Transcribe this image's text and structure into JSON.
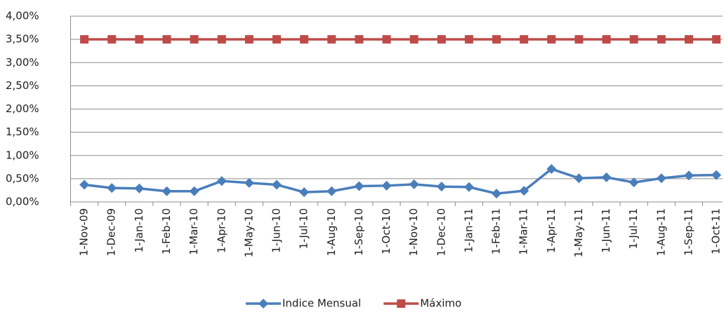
{
  "chart_data": {
    "type": "line",
    "categories": [
      "1-Nov-09",
      "1-Dec-09",
      "1-Jan-10",
      "1-Feb-10",
      "1-Mar-10",
      "1-Apr-10",
      "1-May-10",
      "1-Jun-10",
      "1-Jul-10",
      "1-Aug-10",
      "1-Sep-10",
      "1-Oct-10",
      "1-Nov-10",
      "1-Dec-10",
      "1-Jan-11",
      "1-Feb-11",
      "1-Mar-11",
      "1-Apr-11",
      "1-May-11",
      "1-Jun-11",
      "1-Jul-11",
      "1-Aug-11",
      "1-Sep-11",
      "1-Oct-11"
    ],
    "series": [
      {
        "name": "Indice Mensual",
        "color": "#4a7ebb",
        "marker": "diamond",
        "values": [
          0.37,
          0.3,
          0.29,
          0.23,
          0.23,
          0.45,
          0.41,
          0.37,
          0.21,
          0.23,
          0.34,
          0.35,
          0.38,
          0.33,
          0.32,
          0.18,
          0.24,
          0.71,
          0.51,
          0.53,
          0.42,
          0.51,
          0.57,
          0.58
        ]
      },
      {
        "name": "Máximo",
        "color": "#be4b48",
        "marker": "square",
        "values": [
          3.5,
          3.5,
          3.5,
          3.5,
          3.5,
          3.5,
          3.5,
          3.5,
          3.5,
          3.5,
          3.5,
          3.5,
          3.5,
          3.5,
          3.5,
          3.5,
          3.5,
          3.5,
          3.5,
          3.5,
          3.5,
          3.5,
          3.5,
          3.5
        ]
      }
    ],
    "ylim": [
      0,
      4
    ],
    "yticks": [
      {
        "value": 0,
        "label": "0,00%"
      },
      {
        "value": 0.5,
        "label": "0,50%"
      },
      {
        "value": 1,
        "label": "1,00%"
      },
      {
        "value": 1.5,
        "label": "1,50%"
      },
      {
        "value": 2,
        "label": "2,00%"
      },
      {
        "value": 2.5,
        "label": "2,50%"
      },
      {
        "value": 3,
        "label": "3,00%"
      },
      {
        "value": 3.5,
        "label": "3,50%"
      },
      {
        "value": 4,
        "label": "4,00%"
      }
    ],
    "grid": true,
    "legend": "bottom"
  }
}
